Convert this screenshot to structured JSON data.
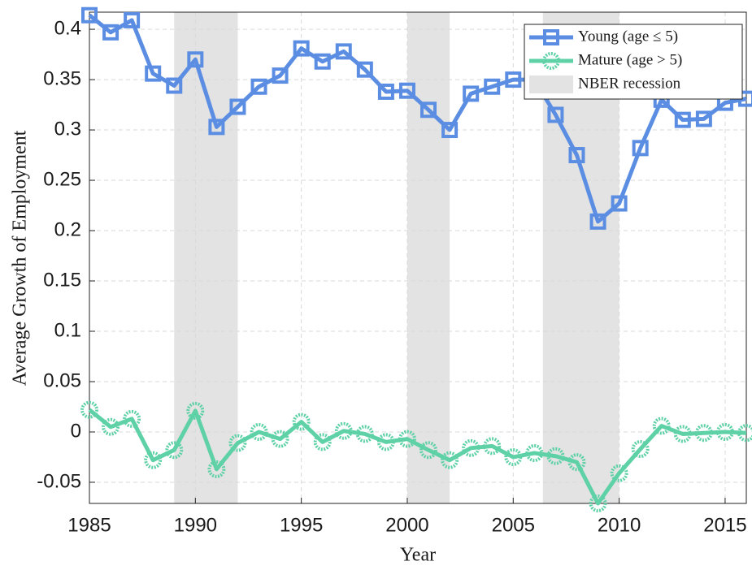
{
  "chart_data": {
    "type": "line",
    "xlabel": "Year",
    "ylabel": "Average Growth of Employment",
    "x": [
      1985,
      1986,
      1987,
      1988,
      1989,
      1990,
      1991,
      1992,
      1993,
      1994,
      1995,
      1996,
      1997,
      1998,
      1999,
      2000,
      2001,
      2002,
      2003,
      2004,
      2005,
      2006,
      2007,
      2008,
      2009,
      2010,
      2011,
      2012,
      2013,
      2014,
      2015,
      2016
    ],
    "series": [
      {
        "name": "Young (age ≤ 5)",
        "color": "#5b8ee3",
        "marker": "square",
        "values": [
          0.414,
          0.397,
          0.409,
          0.356,
          0.344,
          0.37,
          0.303,
          0.323,
          0.343,
          0.354,
          0.381,
          0.368,
          0.378,
          0.36,
          0.338,
          0.339,
          0.32,
          0.3,
          0.336,
          0.343,
          0.35,
          0.35,
          0.315,
          0.275,
          0.209,
          0.227,
          0.282,
          0.33,
          0.31,
          0.311,
          0.327,
          0.331
        ]
      },
      {
        "name": "Mature (age > 5)",
        "color": "#5fd1a7",
        "marker": "circle",
        "values": [
          0.022,
          0.005,
          0.013,
          -0.028,
          -0.018,
          0.021,
          -0.037,
          -0.011,
          0.0,
          -0.007,
          0.01,
          -0.01,
          0.001,
          -0.002,
          -0.01,
          -0.007,
          -0.018,
          -0.028,
          -0.016,
          -0.014,
          -0.025,
          -0.021,
          -0.024,
          -0.03,
          -0.071,
          -0.041,
          -0.017,
          0.006,
          -0.002,
          -0.001,
          0.0,
          -0.001
        ]
      }
    ],
    "recession_label": "NBER recession",
    "recession_color": "#e3e3e3",
    "recessions": [
      [
        1989,
        1992
      ],
      [
        2000,
        2002
      ],
      [
        2006.4,
        2010
      ]
    ],
    "xlim": [
      1985,
      2016
    ],
    "xticks": [
      1985,
      1990,
      1995,
      2000,
      2005,
      2010,
      2015
    ],
    "ylim": [
      -0.071,
      0.417
    ],
    "yticks": [
      -0.05,
      0,
      0.05,
      0.1,
      0.15,
      0.2,
      0.25,
      0.3,
      0.35,
      0.4
    ],
    "grid": true,
    "legend": "upper right"
  }
}
